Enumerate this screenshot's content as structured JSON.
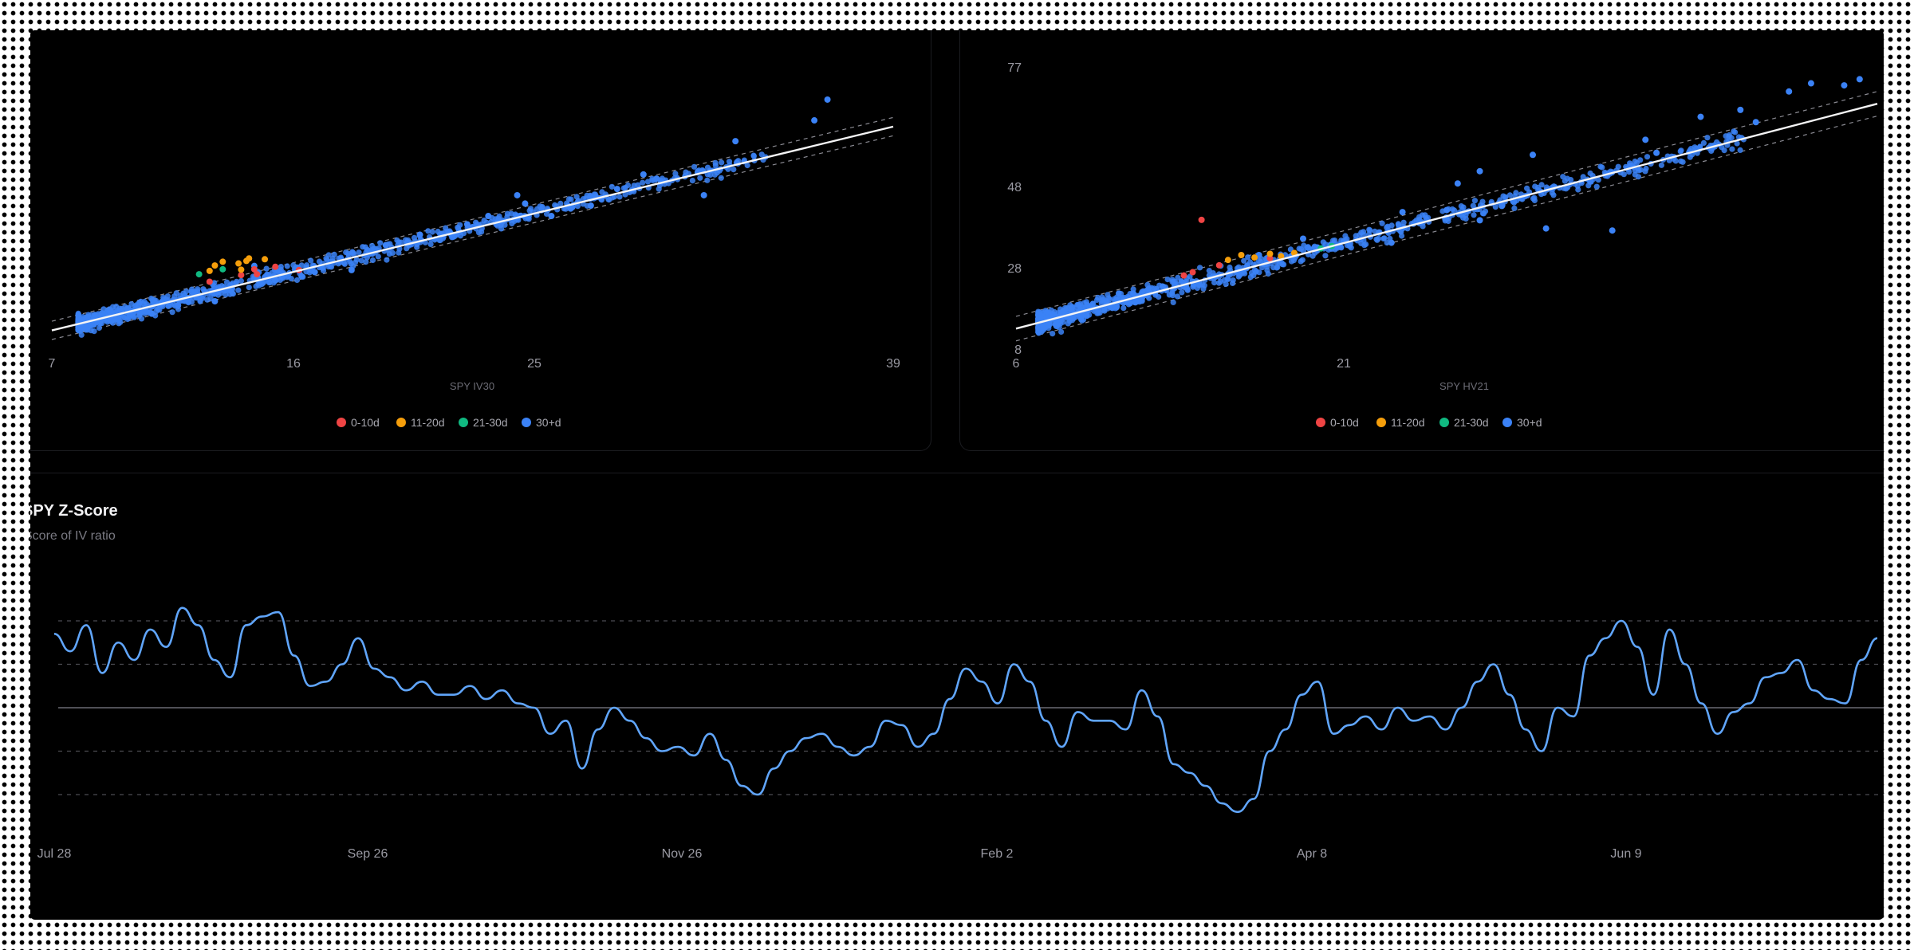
{
  "colors": {
    "background": "#000000",
    "points_0_10d": "#ef4444",
    "points_11_20d": "#f59e0b",
    "points_21_30d": "#10b981",
    "points_30d_plus": "#3b82f6",
    "regression": "#f4f4f5",
    "zscore_line": "#60a5fa",
    "grid": "#4b4b52"
  },
  "z_panel": {
    "title": "SPY Z-Score",
    "subtitle": "Score of IV ratio"
  },
  "chart_data": [
    {
      "type": "scatter",
      "title": "",
      "xlabel": "SPY IV30",
      "ylabel": "",
      "x_ticks": [
        "7",
        "16",
        "25",
        "39"
      ],
      "y_ticks": [],
      "xlim": [
        7,
        39
      ],
      "ylim": [
        8,
        77
      ],
      "grid": false,
      "legend_position": "bottom",
      "legend": [
        "0-10d",
        "11-20d",
        "21-30d",
        "30+d"
      ],
      "regression": {
        "x": [
          7,
          39
        ],
        "y": [
          12.5,
          61.5
        ],
        "band": 2.2
      },
      "series": [
        {
          "name": "30+d",
          "points": [
            [
              14.7,
              28
            ],
            [
              36.5,
              68
            ],
            [
              24.7,
              45
            ],
            [
              31.8,
              45
            ],
            [
              29.5,
              50
            ],
            [
              13.2,
              19.5
            ],
            [
              17.0,
              26.5
            ],
            [
              18.4,
              27.0
            ],
            [
              21.0,
              35.5
            ],
            [
              22.8,
              38.0
            ],
            [
              26.0,
              40.0
            ],
            [
              27.5,
              42.5
            ],
            [
              28.5,
              46.5
            ],
            [
              11.8,
              18.5
            ],
            [
              10.8,
              16.5
            ],
            [
              12.5,
              21.0
            ],
            [
              15.5,
              24.5
            ],
            [
              16.5,
              25.5
            ],
            [
              19.7,
              33.0
            ],
            [
              23.6,
              40.0
            ],
            [
              25.0,
              43.0
            ],
            [
              30.0,
              49.0
            ],
            [
              33.0,
              58.0
            ],
            [
              36.0,
              63.0
            ]
          ]
        },
        {
          "name": "0-10d",
          "points": [
            [
              14.7,
              27.2
            ],
            [
              14.2,
              25.8
            ],
            [
              15.5,
              27.8
            ],
            [
              13.0,
              24.2
            ],
            [
              14.8,
              26.0
            ],
            [
              16.4,
              27.0
            ]
          ]
        },
        {
          "name": "11-20d",
          "points": [
            [
              13.5,
              29.0
            ],
            [
              14.1,
              28.6
            ],
            [
              14.4,
              29.2
            ],
            [
              14.5,
              29.8
            ],
            [
              13.2,
              28.1
            ],
            [
              14.2,
              27.1
            ],
            [
              13.0,
              26.8
            ],
            [
              15.1,
              29.6
            ]
          ]
        },
        {
          "name": "21-30d",
          "points": [
            [
              12.6,
              26.0
            ],
            [
              13.5,
              27.2
            ]
          ]
        }
      ]
    },
    {
      "type": "scatter",
      "title": "",
      "xlabel": "SPY HV21",
      "ylabel": "",
      "x_ticks": [
        "6",
        "21",
        ""
      ],
      "y_ticks": [
        "8",
        "28",
        "48",
        "77"
      ],
      "xlim": [
        6,
        45
      ],
      "ylim": [
        8,
        77
      ],
      "grid": false,
      "legend_position": "bottom",
      "legend": [
        "0-10d",
        "11-20d",
        "21-30d",
        "30+d"
      ],
      "regression": {
        "x": [
          6,
          45
        ],
        "y": [
          13.0,
          68.0
        ],
        "band": 3.0
      },
      "series": [
        {
          "name": "30+d",
          "points": [
            [
              43.5,
              72.5
            ],
            [
              44.2,
              74.0
            ],
            [
              42.0,
              73.0
            ],
            [
              41.0,
              71.0
            ],
            [
              38.8,
              66.5
            ],
            [
              37.0,
              64.8
            ],
            [
              34.5,
              59.2
            ],
            [
              29.4,
              55.5
            ],
            [
              27.0,
              51.5
            ],
            [
              27.0,
              39.5
            ],
            [
              30.0,
              37.5
            ],
            [
              33.0,
              37.0
            ],
            [
              28.0,
              43.0
            ],
            [
              32.0,
              49.0
            ],
            [
              26.0,
              48.5
            ],
            [
              23.5,
              41.5
            ],
            [
              19.0,
              35.0
            ],
            [
              17.0,
              31.0
            ],
            [
              23.0,
              34.0
            ],
            [
              25.5,
              42.0
            ],
            [
              35.0,
              56.0
            ],
            [
              39.5,
              63.5
            ]
          ]
        },
        {
          "name": "0-10d",
          "points": [
            [
              14.4,
              39.6
            ],
            [
              14.0,
              26.8
            ],
            [
              15.2,
              28.5
            ],
            [
              13.6,
              26.0
            ],
            [
              17.5,
              30.2
            ]
          ]
        },
        {
          "name": "11-20d",
          "points": [
            [
              16.2,
              31.0
            ],
            [
              16.8,
              30.4
            ],
            [
              17.5,
              31.3
            ],
            [
              18.0,
              30.7
            ],
            [
              15.6,
              29.8
            ],
            [
              18.6,
              31.5
            ]
          ]
        },
        {
          "name": "21-30d",
          "points": [
            [
              20.3,
              33.2
            ],
            [
              19.8,
              32.6
            ]
          ]
        }
      ]
    },
    {
      "type": "line",
      "title": "SPY Z-Score",
      "subtitle": "Score of IV ratio",
      "xlabel": "",
      "ylabel": "",
      "x_ticks": [
        "Jul 28",
        "Sep 26",
        "Nov 26",
        "Feb 2",
        "Apr 8",
        "Jun 9"
      ],
      "ylim": [
        -2.6,
        2.6
      ],
      "reference_lines": [
        2,
        1,
        0,
        -1,
        -2
      ],
      "grid": true,
      "series": [
        {
          "name": "",
          "values": [
            1.7,
            1.3,
            1.9,
            0.8,
            1.5,
            1.1,
            1.8,
            1.4,
            2.3,
            1.9,
            1.1,
            0.7,
            1.9,
            2.1,
            2.2,
            1.2,
            0.5,
            0.6,
            1.0,
            1.6,
            0.9,
            0.7,
            0.4,
            0.6,
            0.3,
            0.3,
            0.5,
            0.2,
            0.4,
            0.1,
            0.0,
            -0.6,
            -0.3,
            -1.4,
            -0.5,
            0.0,
            -0.3,
            -0.7,
            -1.0,
            -0.9,
            -1.1,
            -0.6,
            -1.2,
            -1.8,
            -2.0,
            -1.4,
            -1.0,
            -0.7,
            -0.6,
            -0.9,
            -1.1,
            -0.9,
            -0.3,
            -0.4,
            -0.9,
            -0.6,
            0.2,
            0.9,
            0.6,
            0.1,
            1.0,
            0.6,
            -0.3,
            -0.9,
            -0.1,
            -0.3,
            -0.3,
            -0.5,
            0.4,
            -0.2,
            -1.3,
            -1.5,
            -1.8,
            -2.2,
            -2.4,
            -2.1,
            -1.0,
            -0.5,
            0.3,
            0.6,
            -0.6,
            -0.4,
            -0.2,
            -0.5,
            0.0,
            -0.3,
            -0.2,
            -0.5,
            0.0,
            0.6,
            1.0,
            0.3,
            -0.5,
            -1.0,
            0.0,
            -0.2,
            1.2,
            1.6,
            2.0,
            1.4,
            0.3,
            1.8,
            1.0,
            0.1,
            -0.6,
            -0.1,
            0.1,
            0.7,
            0.8,
            1.1,
            0.4,
            0.2,
            0.1,
            1.1,
            1.6
          ]
        }
      ]
    }
  ]
}
